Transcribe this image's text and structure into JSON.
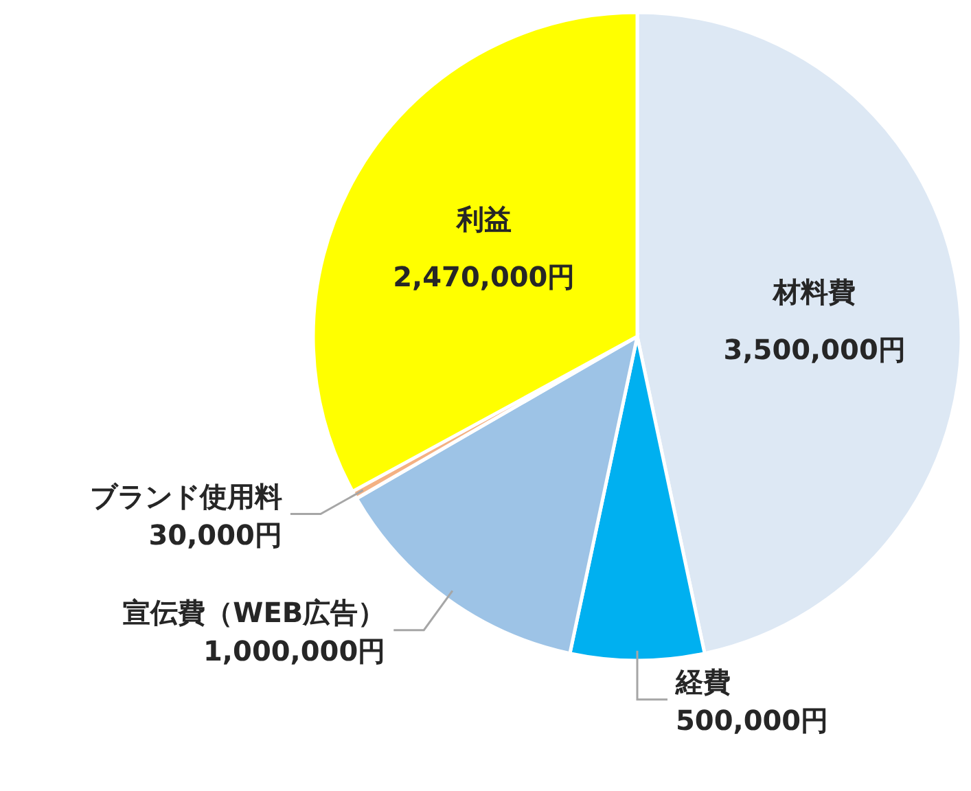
{
  "chart_data": {
    "type": "pie",
    "categories": [
      "材料費",
      "経費",
      "宣伝費（WEB広告）",
      "ブランド使用料",
      "利益"
    ],
    "values": [
      3500000,
      500000,
      1000000,
      30000,
      2470000
    ],
    "value_labels": [
      "3,500,000円",
      "500,000円",
      "1,000,000円",
      "30,000円",
      "2,470,000円"
    ],
    "colors": [
      "#dde8f4",
      "#00b0f0",
      "#9dc3e6",
      "#f4b183",
      "#ffff00"
    ]
  }
}
